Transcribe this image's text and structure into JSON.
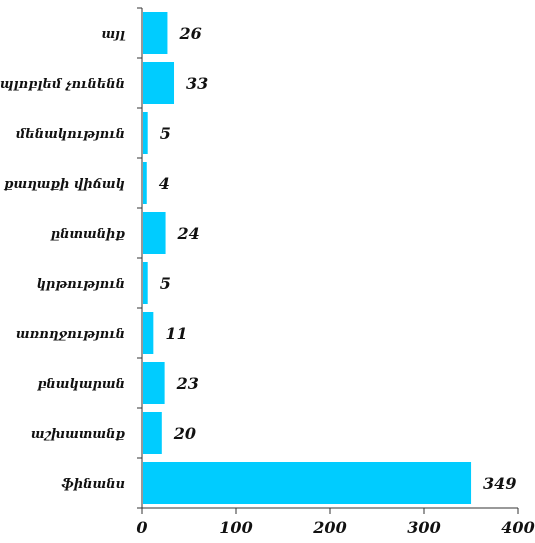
{
  "chart_data": {
    "type": "bar",
    "orientation": "horizontal",
    "categories": [
      "այլ",
      "պլոբլեմ չունենն",
      "մենակություն",
      "քաղաքի վիճակ",
      "ընտանիք",
      "կրթություն",
      "առողջություն",
      "բնակարան",
      "աշխատանք",
      "ֆինանս"
    ],
    "values": [
      26,
      33,
      5,
      4,
      24,
      5,
      11,
      23,
      20,
      349
    ],
    "xlim": [
      0,
      400
    ],
    "xticks": [
      "0",
      "100",
      "200",
      "300",
      "400"
    ],
    "bar_color": "#00ccff",
    "grid": false,
    "title": "",
    "xlabel": "",
    "ylabel": ""
  }
}
